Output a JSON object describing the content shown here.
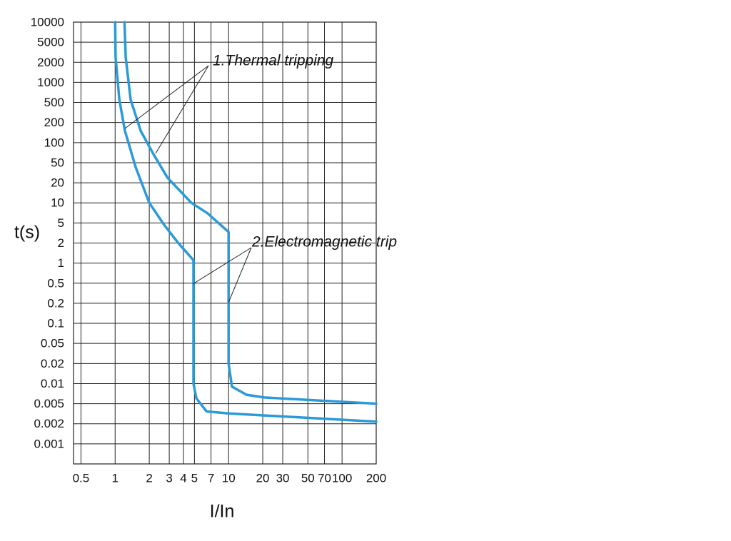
{
  "chart_data": {
    "type": "line",
    "x_label": "I/In",
    "y_label": "t(s)",
    "x_scale": "log",
    "y_scale": "log-by-ticks",
    "grid": true,
    "xlim": [
      0.43,
      200
    ],
    "xticks": [
      0.5,
      1,
      2,
      3,
      4,
      5,
      7,
      10,
      20,
      30,
      50,
      70,
      100,
      200
    ],
    "ylim": [
      0.0005,
      10000
    ],
    "yticks": [
      10000,
      5000,
      2000,
      1000,
      500,
      200,
      100,
      50,
      20,
      10,
      5,
      2,
      1,
      0.5,
      0.2,
      0.1,
      0.05,
      0.02,
      0.01,
      0.005,
      0.002,
      0.001
    ],
    "annotations": [
      "1.Thermal tripping",
      "2.Electromagnetic trip"
    ],
    "series": [
      {
        "color": "#2b9ad8",
        "x": [
          1.0,
          1.01,
          1.09,
          1.22,
          1.52,
          2,
          2.7,
          3.6,
          4.7,
          4.9,
          4.9,
          5.2,
          6.4,
          10,
          200
        ],
        "values": [
          10000,
          2500,
          550,
          150,
          40,
          10,
          4.6,
          2,
          1.2,
          1.1,
          0.01,
          0.006,
          0.0035,
          0.0032,
          0.0022
        ]
      },
      {
        "color": "#2b9ad8",
        "x": [
          1.21,
          1.24,
          1.37,
          1.68,
          2.2,
          2.9,
          4.7,
          6.5,
          10,
          10,
          10.7,
          14.4,
          20.6,
          200
        ],
        "values": [
          10000,
          2500,
          550,
          150,
          65,
          25,
          10,
          7,
          3.3,
          0.02,
          0.009,
          0.0068,
          0.0062,
          0.005
        ]
      }
    ]
  }
}
